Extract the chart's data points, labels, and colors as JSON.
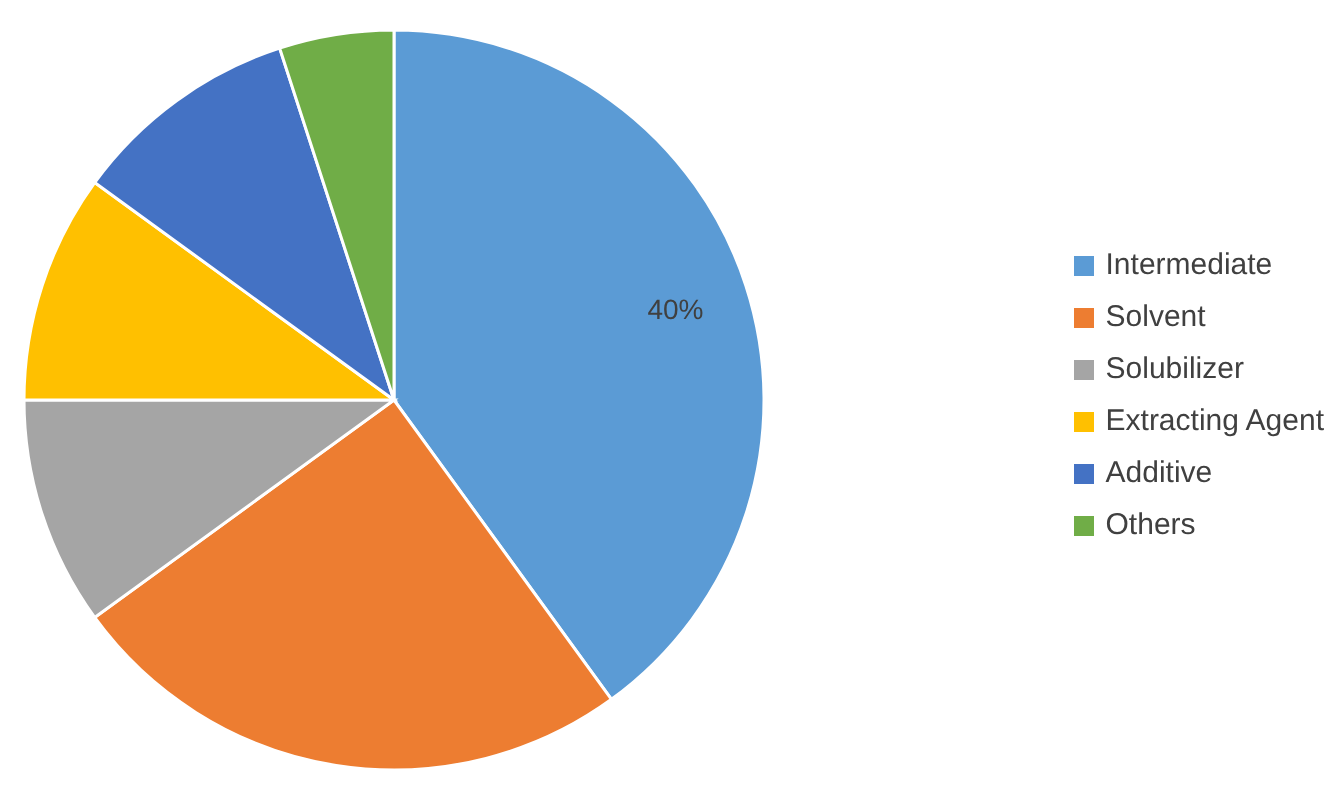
{
  "chart_data": {
    "type": "pie",
    "categories": [
      "Intermediate",
      "Solvent",
      "Solubilizer",
      "Extracting Agent",
      "Additive",
      "Others"
    ],
    "values": [
      40,
      25,
      10,
      10,
      10,
      5
    ],
    "colors": [
      "#5b9bd5",
      "#ed7d31",
      "#a5a5a5",
      "#ffc000",
      "#4472c4",
      "#70ad47"
    ],
    "value_labels": [
      "40%",
      null,
      null,
      null,
      null,
      null
    ],
    "legend": "right"
  }
}
